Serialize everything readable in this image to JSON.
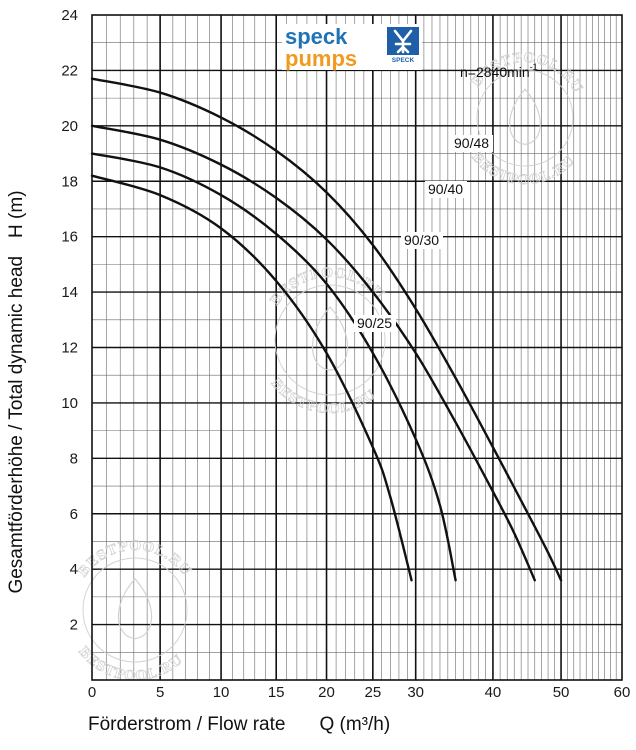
{
  "logo": {
    "line1": "speck",
    "line2": "pumps",
    "badge": "SPECK",
    "colors": {
      "speck": "#1f74b8",
      "pumps": "#f29a1f",
      "badge": "#1f5fa8"
    }
  },
  "watermark": {
    "text": "BESTPOOL.RU",
    "color": "#cfcfcf"
  },
  "chart_data": {
    "type": "line",
    "x_scale": "log",
    "xlim": [
      0,
      60
    ],
    "ylim": [
      0,
      24
    ],
    "grid": true,
    "xlabel": "Förderstrom / Flow rate",
    "xunit": "Q (m³/h)",
    "ylabel": "Gesamtförderhöhe / Total dynamic head",
    "yunit": "H (m)",
    "x_major_ticks": [
      {
        "value": 0,
        "label": "0"
      },
      {
        "value": 5,
        "label": "5"
      },
      {
        "value": 10,
        "label": "10"
      },
      {
        "value": 15,
        "label": "15"
      },
      {
        "value": 20,
        "label": "20"
      },
      {
        "value": 25,
        "label": "25"
      },
      {
        "value": 30,
        "label": "30"
      },
      {
        "value": 40,
        "label": "40"
      },
      {
        "value": 50,
        "label": "50"
      },
      {
        "value": 60,
        "label": "60"
      }
    ],
    "y_major_ticks": [
      {
        "value": 2,
        "label": "2"
      },
      {
        "value": 4,
        "label": "4"
      },
      {
        "value": 6,
        "label": "6"
      },
      {
        "value": 8,
        "label": "8"
      },
      {
        "value": 10,
        "label": "10"
      },
      {
        "value": 12,
        "label": "12"
      },
      {
        "value": 14,
        "label": "14"
      },
      {
        "value": 16,
        "label": "16"
      },
      {
        "value": 18,
        "label": "18"
      },
      {
        "value": 20,
        "label": "20"
      },
      {
        "value": 22,
        "label": "22"
      },
      {
        "value": 24,
        "label": "24"
      }
    ],
    "annotation": {
      "text": "n=2840min",
      "sup": "-1"
    },
    "series": [
      {
        "name": "90/48",
        "points": [
          [
            0,
            21.7
          ],
          [
            5,
            21.2
          ],
          [
            10,
            20.3
          ],
          [
            15,
            19.1
          ],
          [
            20,
            17.6
          ],
          [
            25,
            15.7
          ],
          [
            30,
            13.4
          ],
          [
            35,
            10.9
          ],
          [
            40,
            8.4
          ],
          [
            45,
            6.0
          ],
          [
            48,
            4.6
          ],
          [
            50,
            3.6
          ]
        ]
      },
      {
        "name": "90/40",
        "points": [
          [
            0,
            20.0
          ],
          [
            5,
            19.5
          ],
          [
            10,
            18.6
          ],
          [
            15,
            17.4
          ],
          [
            20,
            15.9
          ],
          [
            25,
            14.0
          ],
          [
            30,
            11.8
          ],
          [
            35,
            9.3
          ],
          [
            40,
            6.8
          ],
          [
            43,
            5.3
          ],
          [
            46,
            3.6
          ]
        ]
      },
      {
        "name": "90/30",
        "points": [
          [
            0,
            19.0
          ],
          [
            5,
            18.5
          ],
          [
            10,
            17.5
          ],
          [
            15,
            16.1
          ],
          [
            20,
            14.3
          ],
          [
            25,
            11.8
          ],
          [
            30,
            8.7
          ],
          [
            33,
            6.3
          ],
          [
            35,
            3.6
          ]
        ]
      },
      {
        "name": "90/25",
        "points": [
          [
            0,
            18.2
          ],
          [
            5,
            17.5
          ],
          [
            10,
            16.3
          ],
          [
            15,
            14.4
          ],
          [
            20,
            11.8
          ],
          [
            25,
            8.4
          ],
          [
            27,
            6.6
          ],
          [
            29.5,
            3.6
          ]
        ]
      }
    ]
  }
}
